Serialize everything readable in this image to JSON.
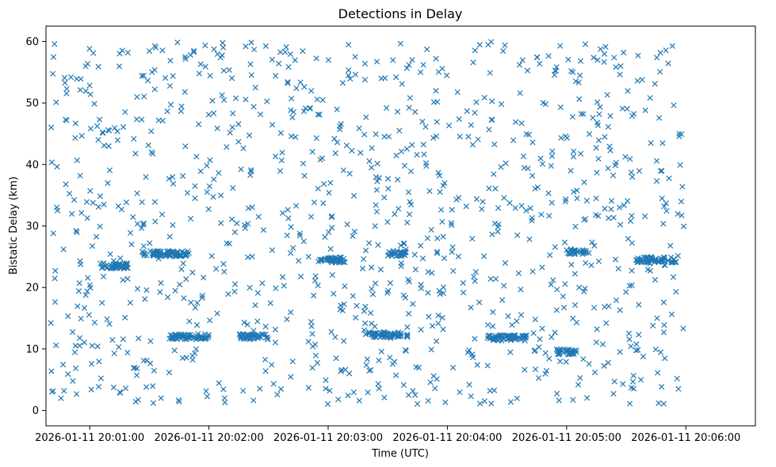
{
  "chart_data": {
    "type": "scatter",
    "title": "Detections in Delay",
    "xlabel": "Time (UTC)",
    "ylabel": "Bistatic Delay (km)",
    "marker": "x",
    "color": "#1f77b4",
    "x_start": "2026-01-11 20:00:40",
    "x_end": "2026-01-11 20:06:00",
    "xlim": [
      "2026-01-11 20:00:38",
      "2026-01-11 20:06:35"
    ],
    "ylim": [
      -2.5,
      62.5
    ],
    "x_ticks": [
      "2026-01-11 20:01:00",
      "2026-01-11 20:02:00",
      "2026-01-11 20:03:00",
      "2026-01-11 20:04:00",
      "2026-01-11 20:05:00",
      "2026-01-11 20:06:00"
    ],
    "y_ticks": [
      "0",
      "10",
      "20",
      "30",
      "40",
      "50",
      "60"
    ],
    "grid": false,
    "point_count": 1600,
    "structure": {
      "background": {
        "ymin": 1,
        "ymax": 60
      },
      "bands": [
        {
          "y": 25.5,
          "x_range": [
            "2026-01-11 20:01:25",
            "2026-01-11 20:01:50"
          ]
        },
        {
          "y": 23.5,
          "x_range": [
            "2026-01-11 20:01:05",
            "2026-01-11 20:01:20"
          ]
        },
        {
          "y": 12.0,
          "x_range": [
            "2026-01-11 20:01:40",
            "2026-01-11 20:02:00"
          ]
        },
        {
          "y": 12.0,
          "x_range": [
            "2026-01-11 20:02:15",
            "2026-01-11 20:02:30"
          ]
        },
        {
          "y": 24.5,
          "x_range": [
            "2026-01-11 20:02:55",
            "2026-01-11 20:03:10"
          ]
        },
        {
          "y": 12.3,
          "x_range": [
            "2026-01-11 20:03:20",
            "2026-01-11 20:03:40"
          ]
        },
        {
          "y": 25.5,
          "x_range": [
            "2026-01-11 20:03:30",
            "2026-01-11 20:03:40"
          ]
        },
        {
          "y": 11.8,
          "x_range": [
            "2026-01-11 20:04:20",
            "2026-01-11 20:04:40"
          ]
        },
        {
          "y": 25.8,
          "x_range": [
            "2026-01-11 20:05:00",
            "2026-01-11 20:05:10"
          ]
        },
        {
          "y": 24.5,
          "x_range": [
            "2026-01-11 20:05:35",
            "2026-01-11 20:05:55"
          ]
        },
        {
          "y": 9.5,
          "x_range": [
            "2026-01-11 20:04:55",
            "2026-01-11 20:05:05"
          ]
        }
      ]
    }
  }
}
